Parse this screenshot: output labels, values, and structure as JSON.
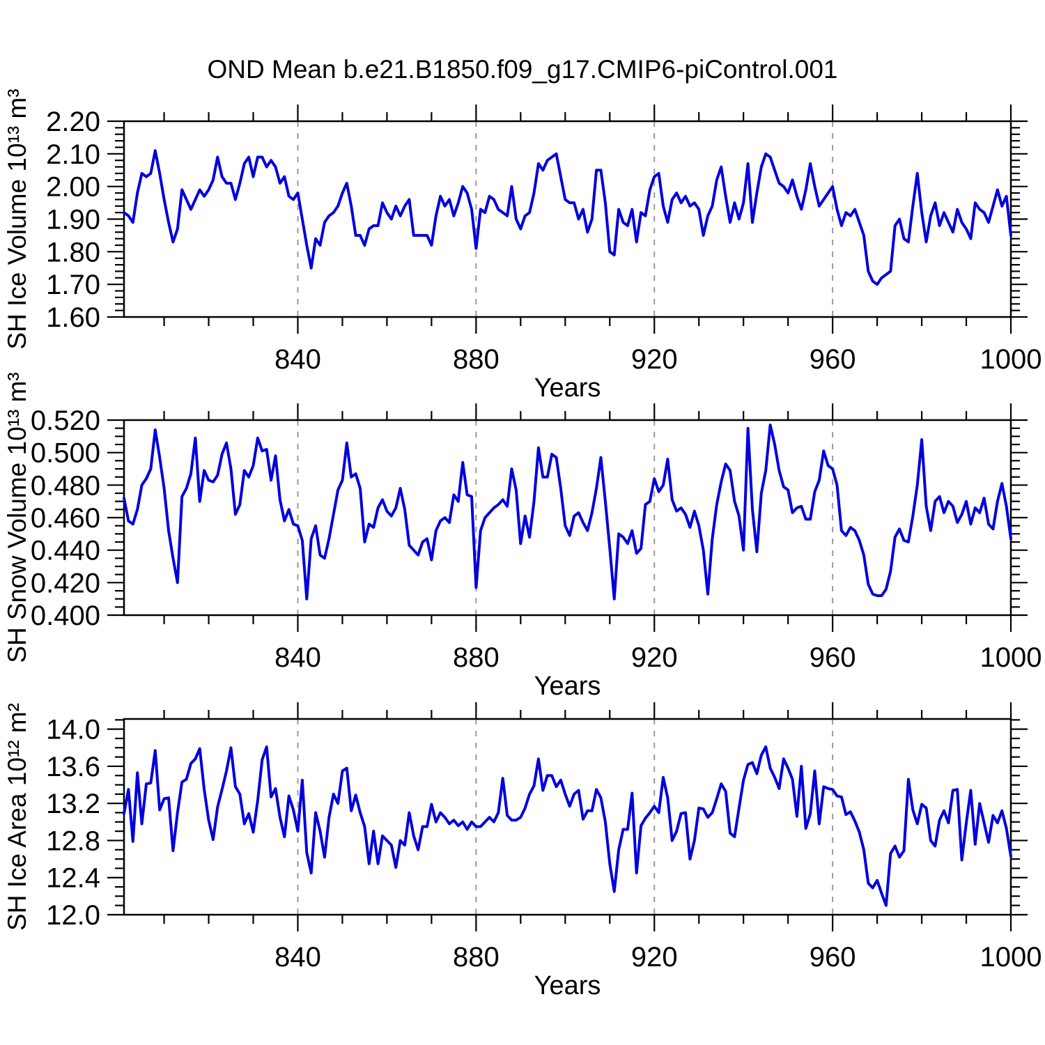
{
  "title": "OND Mean b.e21.B1850.f09_g17.CMIP6-piControl.001",
  "colors": {
    "line": "#0000dd",
    "gridline": "#9a9a9a",
    "axis": "#000000"
  },
  "x_axis": {
    "label": "Years",
    "major_ticks": [
      {
        "value": 840,
        "label": "840"
      },
      {
        "value": 880,
        "label": "880"
      },
      {
        "value": 920,
        "label": "920"
      },
      {
        "value": 960,
        "label": "960"
      },
      {
        "value": 1000,
        "label": "1000"
      }
    ],
    "minor_tick_step": 10,
    "dashed_gridlines": [
      840,
      880,
      920,
      960
    ],
    "range": [
      801,
      1000
    ]
  },
  "chart_data": [
    {
      "type": "line",
      "ylabel": "SH Ice Volume 10¹³ m³",
      "xlabel": "Years",
      "xlim": [
        801,
        1000
      ],
      "ylim": [
        1.6,
        2.2
      ],
      "y_ticks": [
        {
          "value": 2.2,
          "label": "2.20"
        },
        {
          "value": 2.1,
          "label": "2.10"
        },
        {
          "value": 2.0,
          "label": "2.00"
        },
        {
          "value": 1.9,
          "label": "1.90"
        },
        {
          "value": 1.8,
          "label": "1.80"
        },
        {
          "value": 1.7,
          "label": "1.70"
        },
        {
          "value": 1.6,
          "label": "1.60"
        }
      ],
      "y_minor_step": 0.02,
      "x_start": 801,
      "values": [
        1.92,
        1.91,
        1.89,
        1.98,
        2.04,
        2.03,
        2.04,
        2.11,
        2.04,
        1.96,
        1.89,
        1.83,
        1.87,
        1.99,
        1.96,
        1.93,
        1.96,
        1.99,
        1.97,
        1.99,
        2.02,
        2.09,
        2.03,
        2.01,
        2.01,
        1.96,
        2.01,
        2.07,
        2.09,
        2.03,
        2.09,
        2.09,
        2.06,
        2.08,
        2.06,
        2.01,
        2.03,
        1.97,
        1.96,
        1.98,
        1.9,
        1.82,
        1.75,
        1.84,
        1.82,
        1.89,
        1.91,
        1.92,
        1.94,
        1.98,
        2.01,
        1.94,
        1.85,
        1.85,
        1.82,
        1.87,
        1.88,
        1.88,
        1.95,
        1.92,
        1.9,
        1.94,
        1.91,
        1.94,
        1.96,
        1.85,
        1.85,
        1.85,
        1.85,
        1.82,
        1.91,
        1.97,
        1.94,
        1.96,
        1.91,
        1.95,
        2.0,
        1.98,
        1.93,
        1.81,
        1.93,
        1.92,
        1.97,
        1.96,
        1.93,
        1.92,
        1.91,
        2.0,
        1.9,
        1.87,
        1.91,
        1.92,
        1.98,
        2.07,
        2.05,
        2.08,
        2.09,
        2.1,
        2.03,
        1.96,
        1.95,
        1.95,
        1.9,
        1.93,
        1.86,
        1.9,
        2.05,
        2.05,
        1.95,
        1.8,
        1.79,
        1.93,
        1.89,
        1.88,
        1.93,
        1.83,
        1.92,
        1.91,
        1.99,
        2.03,
        2.04,
        1.94,
        1.89,
        1.96,
        1.98,
        1.95,
        1.97,
        1.94,
        1.95,
        1.93,
        1.85,
        1.91,
        1.94,
        2.02,
        2.06,
        1.97,
        1.89,
        1.95,
        1.9,
        1.95,
        2.07,
        1.89,
        1.98,
        2.06,
        2.1,
        2.09,
        2.05,
        2.01,
        2.0,
        1.98,
        2.02,
        1.97,
        1.93,
        1.99,
        2.07,
        2.0,
        1.94,
        1.96,
        1.98,
        2.0,
        1.93,
        1.88,
        1.92,
        1.91,
        1.93,
        1.89,
        1.85,
        1.74,
        1.71,
        1.7,
        1.72,
        1.73,
        1.74,
        1.88,
        1.9,
        1.84,
        1.83,
        1.94,
        2.04,
        1.92,
        1.83,
        1.91,
        1.95,
        1.88,
        1.92,
        1.89,
        1.86,
        1.93,
        1.89,
        1.87,
        1.84,
        1.95,
        1.93,
        1.92,
        1.89,
        1.94,
        1.99,
        1.94,
        1.97,
        1.85
      ]
    },
    {
      "type": "line",
      "ylabel": "SH Snow Volume 10¹³ m³",
      "xlabel": "Years",
      "xlim": [
        801,
        1000
      ],
      "ylim": [
        0.4,
        0.52
      ],
      "y_ticks": [
        {
          "value": 0.52,
          "label": "0.520"
        },
        {
          "value": 0.5,
          "label": "0.500"
        },
        {
          "value": 0.48,
          "label": "0.480"
        },
        {
          "value": 0.46,
          "label": "0.460"
        },
        {
          "value": 0.44,
          "label": "0.440"
        },
        {
          "value": 0.42,
          "label": "0.420"
        },
        {
          "value": 0.4,
          "label": "0.400"
        }
      ],
      "y_minor_step": 0.005,
      "x_start": 801,
      "values": [
        0.472,
        0.458,
        0.456,
        0.465,
        0.48,
        0.484,
        0.49,
        0.514,
        0.497,
        0.478,
        0.452,
        0.435,
        0.42,
        0.473,
        0.478,
        0.487,
        0.509,
        0.47,
        0.489,
        0.483,
        0.482,
        0.486,
        0.499,
        0.506,
        0.49,
        0.462,
        0.468,
        0.489,
        0.485,
        0.492,
        0.509,
        0.501,
        0.502,
        0.483,
        0.498,
        0.471,
        0.458,
        0.465,
        0.456,
        0.455,
        0.446,
        0.41,
        0.447,
        0.455,
        0.437,
        0.435,
        0.447,
        0.462,
        0.477,
        0.483,
        0.506,
        0.485,
        0.487,
        0.478,
        0.445,
        0.456,
        0.454,
        0.466,
        0.471,
        0.464,
        0.461,
        0.466,
        0.478,
        0.465,
        0.443,
        0.44,
        0.437,
        0.445,
        0.447,
        0.434,
        0.452,
        0.458,
        0.46,
        0.457,
        0.474,
        0.47,
        0.494,
        0.474,
        0.473,
        0.417,
        0.452,
        0.46,
        0.463,
        0.466,
        0.468,
        0.471,
        0.467,
        0.49,
        0.477,
        0.444,
        0.461,
        0.448,
        0.47,
        0.503,
        0.485,
        0.485,
        0.499,
        0.497,
        0.478,
        0.455,
        0.449,
        0.461,
        0.463,
        0.457,
        0.452,
        0.463,
        0.478,
        0.497,
        0.47,
        0.441,
        0.41,
        0.45,
        0.448,
        0.444,
        0.452,
        0.438,
        0.441,
        0.468,
        0.47,
        0.484,
        0.476,
        0.48,
        0.496,
        0.471,
        0.464,
        0.466,
        0.462,
        0.454,
        0.464,
        0.455,
        0.44,
        0.413,
        0.447,
        0.468,
        0.482,
        0.493,
        0.489,
        0.47,
        0.461,
        0.44,
        0.515,
        0.465,
        0.439,
        0.475,
        0.489,
        0.517,
        0.505,
        0.489,
        0.479,
        0.477,
        0.463,
        0.466,
        0.467,
        0.459,
        0.459,
        0.476,
        0.483,
        0.501,
        0.492,
        0.49,
        0.48,
        0.452,
        0.449,
        0.454,
        0.452,
        0.446,
        0.437,
        0.419,
        0.413,
        0.412,
        0.412,
        0.416,
        0.427,
        0.448,
        0.453,
        0.446,
        0.445,
        0.461,
        0.48,
        0.508,
        0.467,
        0.452,
        0.47,
        0.473,
        0.463,
        0.47,
        0.467,
        0.457,
        0.462,
        0.47,
        0.456,
        0.466,
        0.463,
        0.472,
        0.456,
        0.453,
        0.47,
        0.481,
        0.467,
        0.447
      ]
    },
    {
      "type": "line",
      "ylabel": "SH Ice Area 10¹² m²",
      "xlabel": "Years",
      "xlim": [
        801,
        1000
      ],
      "ylim": [
        12.0,
        14.11
      ],
      "y_ticks": [
        {
          "value": 14.0,
          "label": "14.0"
        },
        {
          "value": 13.6,
          "label": "13.6"
        },
        {
          "value": 13.2,
          "label": "13.2"
        },
        {
          "value": 12.8,
          "label": "12.8"
        },
        {
          "value": 12.4,
          "label": "12.4"
        },
        {
          "value": 12.0,
          "label": "12.0"
        }
      ],
      "y_minor_step": 0.1,
      "x_start": 801,
      "values": [
        13.09,
        13.35,
        12.79,
        13.53,
        12.98,
        13.41,
        13.42,
        13.77,
        13.13,
        13.25,
        13.26,
        12.69,
        13.1,
        13.43,
        13.46,
        13.63,
        13.68,
        13.79,
        13.35,
        13.02,
        12.81,
        13.16,
        13.35,
        13.55,
        13.8,
        13.38,
        13.3,
        12.98,
        13.09,
        12.89,
        13.23,
        13.67,
        13.81,
        13.27,
        13.36,
        13.05,
        12.84,
        13.28,
        13.13,
        12.9,
        13.45,
        12.67,
        12.45,
        13.1,
        12.9,
        12.62,
        13.05,
        13.3,
        13.2,
        13.55,
        13.58,
        13.12,
        13.29,
        13.1,
        12.95,
        12.55,
        12.9,
        12.55,
        12.85,
        12.8,
        12.75,
        12.51,
        12.8,
        12.75,
        13.1,
        12.85,
        12.7,
        12.95,
        12.95,
        13.19,
        13.0,
        13.1,
        13.05,
        12.98,
        13.02,
        12.96,
        13.0,
        12.92,
        13.0,
        12.95,
        12.95,
        13.0,
        13.05,
        13.0,
        13.1,
        13.47,
        13.07,
        13.02,
        13.02,
        13.05,
        13.15,
        13.3,
        13.39,
        13.68,
        13.34,
        13.5,
        13.5,
        13.38,
        13.45,
        13.3,
        13.17,
        13.3,
        13.34,
        13.03,
        13.12,
        13.12,
        13.35,
        13.26,
        13.0,
        12.55,
        12.25,
        12.7,
        12.92,
        12.92,
        13.31,
        12.45,
        12.96,
        13.04,
        13.1,
        13.17,
        13.1,
        13.48,
        13.26,
        12.8,
        12.9,
        13.09,
        13.1,
        12.6,
        12.8,
        13.15,
        13.14,
        13.05,
        13.1,
        13.25,
        13.41,
        13.33,
        12.88,
        12.84,
        13.15,
        13.45,
        13.62,
        13.64,
        13.52,
        13.72,
        13.81,
        13.58,
        13.48,
        13.36,
        13.68,
        13.58,
        13.46,
        13.06,
        13.6,
        12.93,
        13.09,
        13.55,
        12.98,
        13.38,
        13.36,
        13.35,
        13.28,
        13.27,
        13.08,
        13.11,
        13.01,
        12.89,
        12.7,
        12.34,
        12.29,
        12.37,
        12.23,
        12.1,
        12.66,
        12.74,
        12.62,
        12.69,
        13.46,
        13.13,
        12.98,
        13.19,
        13.15,
        12.8,
        12.74,
        13.02,
        13.12,
        12.99,
        13.34,
        13.35,
        12.59,
        12.99,
        13.34,
        12.76,
        13.2,
        12.99,
        12.78,
        13.07,
        12.99,
        13.12,
        12.93,
        12.63
      ]
    }
  ]
}
